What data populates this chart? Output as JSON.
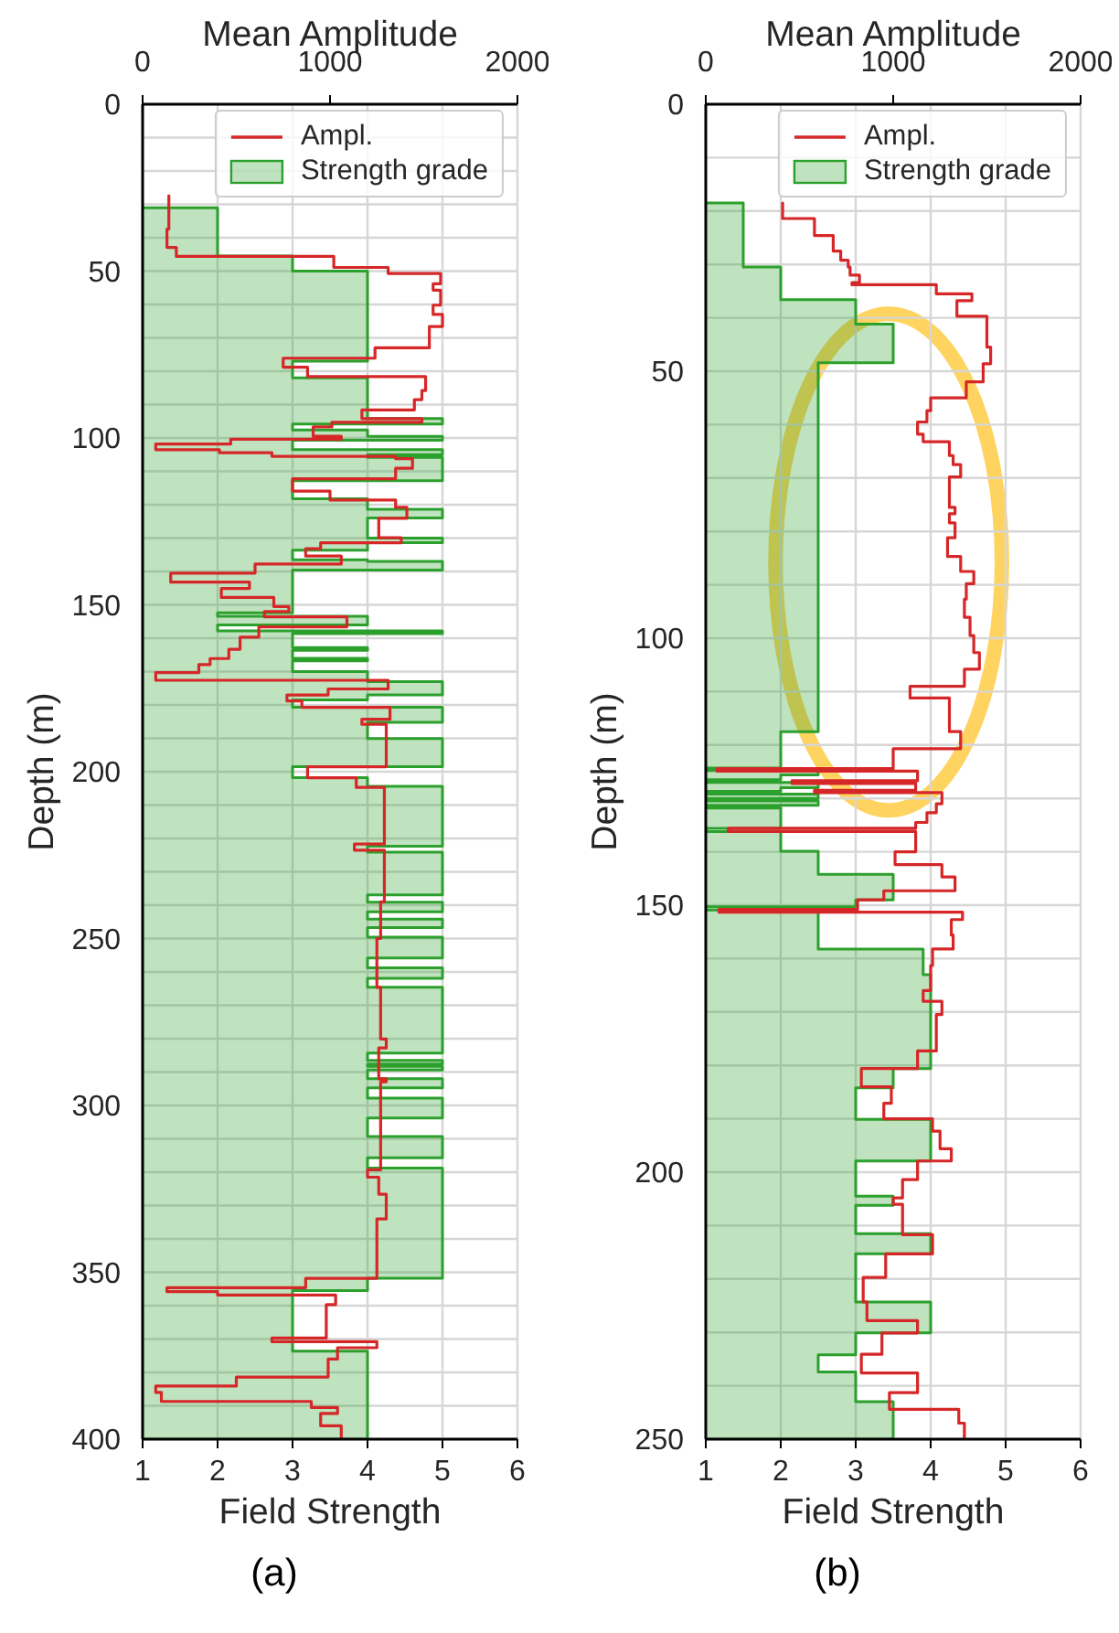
{
  "chart_data": [
    {
      "type": "step",
      "orientation": "horizontal",
      "x2label": "Mean Amplitude",
      "xlabel": "Field Strength",
      "ylabel": "Depth (m)",
      "annotations": [
        "(a)"
      ],
      "xlim": [
        1,
        6
      ],
      "xticks": [
        1,
        2,
        3,
        4,
        5,
        6
      ],
      "x2lim": [
        0,
        2000
      ],
      "x2ticks": [
        0,
        1000,
        2000
      ],
      "ylim": [
        400,
        0
      ],
      "yticks": [
        0,
        {
          "value": 10,
          "label": null
        },
        {
          "value": 20,
          "label": null
        },
        {
          "value": 30,
          "label": null
        },
        {
          "value": 40,
          "label": null
        },
        50,
        {
          "value": 60,
          "label": null
        },
        {
          "value": 70,
          "label": null
        },
        {
          "value": 80,
          "label": null
        },
        {
          "value": 90,
          "label": null
        },
        100,
        {
          "value": 110,
          "label": null
        },
        {
          "value": 120,
          "label": null
        },
        {
          "value": 130,
          "label": null
        },
        {
          "value": 140,
          "label": null
        },
        150,
        {
          "value": 160,
          "label": null
        },
        {
          "value": 170,
          "label": null
        },
        {
          "value": 180,
          "label": null
        },
        {
          "value": 190,
          "label": null
        },
        200,
        {
          "value": 210,
          "label": null
        },
        {
          "value": 220,
          "label": null
        },
        {
          "value": 230,
          "label": null
        },
        {
          "value": 240,
          "label": null
        },
        250,
        {
          "value": 260,
          "label": null
        },
        {
          "value": 270,
          "label": null
        },
        {
          "value": 280,
          "label": null
        },
        {
          "value": 290,
          "label": null
        },
        300,
        {
          "value": 310,
          "label": null
        },
        {
          "value": 320,
          "label": null
        },
        {
          "value": 330,
          "label": null
        },
        {
          "value": 340,
          "label": null
        },
        350,
        {
          "value": 360,
          "label": null
        },
        {
          "value": 370,
          "label": null
        },
        {
          "value": 380,
          "label": null
        },
        {
          "value": 390,
          "label": null
        },
        400
      ],
      "grid": true,
      "legend": "top right",
      "series": [
        {
          "name": "Ampl.",
          "type": "step",
          "axis": "x2",
          "color": "#d62728",
          "x": [
            27.4,
            37.4,
            42.9,
            45.6,
            48.9,
            50.7,
            53.8,
            55.7,
            60.2,
            63,
            66.6,
            73,
            76.1,
            78.8,
            81.6,
            85.8,
            88.5,
            91.6,
            94.2,
            95.3,
            96.7,
            99.5,
            100.4,
            101.8,
            103.5,
            104.4,
            105.5,
            106.2,
            109.1,
            112.2,
            115.9,
            118.6,
            120.8,
            124.1,
            129.9,
            131.4,
            133.2,
            135.4,
            137.8,
            140.5,
            143.2,
            145.1,
            147.8,
            150.5,
            152,
            153.6,
            156.6,
            159.7,
            163.3,
            166.1,
            167.9,
            170.3,
            172.6,
            175.2,
            177,
            178.8,
            180.7,
            184.3,
            185.8,
            198.5,
            201.8,
            204.7,
            221.7,
            223.5,
            239,
            250,
            264.6,
            280.1,
            282.8,
            292,
            292.9,
            319.3,
            321.5,
            326.6,
            334,
            351.8,
            354.6,
            355.8,
            356.8,
            359.7,
            369.7,
            370.8,
            372.6,
            376,
            381.4,
            384.1,
            386,
            388.7,
            390.5,
            392.3,
            396,
            400
          ],
          "values": [
            140,
            130,
            180,
            1020,
            1310,
            1590,
            1550,
            1590,
            1550,
            1600,
            1530,
            1240,
            750,
            880,
            1510,
            1490,
            1450,
            1170,
            1490,
            1010,
            910,
            1060,
            470,
            70,
            410,
            690,
            1350,
            1440,
            1350,
            800,
            1000,
            1350,
            1410,
            1260,
            1380,
            950,
            870,
            1060,
            600,
            150,
            570,
            420,
            700,
            780,
            650,
            1090,
            620,
            520,
            460,
            360,
            300,
            70,
            1310,
            990,
            770,
            850,
            1320,
            1170,
            1300,
            880,
            1140,
            1290,
            1130,
            1290,
            1270,
            1250,
            1270,
            1300,
            1260,
            1300,
            1270,
            1200,
            1260,
            1300,
            1250,
            870,
            130,
            400,
            1030,
            980,
            690,
            1250,
            1040,
            990,
            500,
            70,
            100,
            900,
            1040,
            950,
            1060,
            1060
          ]
        },
        {
          "name": "Strength grade",
          "type": "area",
          "color": "#2ca02c",
          "x": [
            31,
            45.5,
            50,
            77,
            82,
            94.2,
            95.8,
            97.6,
            99.5,
            100.7,
            103.5,
            105,
            105.8,
            112.8,
            118.2,
            121.4,
            124,
            130,
            131.4,
            133.6,
            136.5,
            137,
            139.6,
            152.4,
            153.4,
            156,
            157.8,
            158.6,
            162.8,
            163.6,
            166,
            166.8,
            170,
            173,
            177,
            178.5,
            180.7,
            185.2,
            190.1,
            198.5,
            201.8,
            204.4,
            222.3,
            224.1,
            236.9,
            239.1,
            242,
            244.2,
            246.7,
            249.6,
            255.8,
            258.8,
            261.9,
            264.6,
            284.3,
            286.5,
            287.6,
            288.3,
            289.4,
            292,
            294.7,
            297.8,
            303.8,
            309.3,
            315.7,
            318.8,
            351.8,
            355.5,
            373.6,
            400
          ],
          "values": [
            2,
            3,
            4,
            3,
            4,
            5,
            3,
            4,
            5,
            3,
            5,
            4,
            5,
            3,
            4,
            5,
            4,
            5,
            4,
            3,
            4,
            5,
            3,
            2,
            4,
            2,
            5,
            3,
            4,
            3,
            4,
            3,
            4,
            5,
            4,
            3,
            5,
            4,
            5,
            3,
            4,
            5,
            4,
            5,
            4,
            5,
            4,
            5,
            4,
            5,
            4,
            5,
            4,
            5,
            4,
            5,
            4,
            5,
            4,
            5,
            4,
            5,
            4,
            5,
            4,
            5,
            4,
            3,
            4,
            4
          ]
        }
      ]
    },
    {
      "type": "step",
      "orientation": "horizontal",
      "x2label": "Mean Amplitude",
      "xlabel": "Field Strength",
      "ylabel": "Depth (m)",
      "annotations": [
        "(b)"
      ],
      "xlim": [
        1,
        6
      ],
      "xticks": [
        1,
        2,
        3,
        4,
        5,
        6
      ],
      "x2lim": [
        0,
        2000
      ],
      "x2ticks": [
        0,
        1000,
        2000
      ],
      "ylim": [
        250,
        0
      ],
      "yticks": [
        0,
        {
          "value": 10,
          "label": null
        },
        {
          "value": 20,
          "label": null
        },
        {
          "value": 30,
          "label": null
        },
        {
          "value": 40,
          "label": null
        },
        50,
        {
          "value": 60,
          "label": null
        },
        {
          "value": 70,
          "label": null
        },
        {
          "value": 80,
          "label": null
        },
        {
          "value": 90,
          "label": null
        },
        100,
        {
          "value": 110,
          "label": null
        },
        {
          "value": 120,
          "label": null
        },
        {
          "value": 130,
          "label": null
        },
        {
          "value": 140,
          "label": null
        },
        150,
        {
          "value": 160,
          "label": null
        },
        {
          "value": 170,
          "label": null
        },
        {
          "value": 180,
          "label": null
        },
        {
          "value": 190,
          "label": null
        },
        200,
        {
          "value": 210,
          "label": null
        },
        {
          "value": 220,
          "label": null
        },
        {
          "value": 230,
          "label": null
        },
        {
          "value": 240,
          "label": null
        },
        250
      ],
      "grid": true,
      "legend": "top right",
      "series": [
        {
          "name": "Ampl.",
          "type": "step",
          "axis": "x2",
          "color": "#d62728",
          "x": [
            18.5,
            21.4,
            24.6,
            27.5,
            29.2,
            30.5,
            32,
            33.4,
            33.8,
            35.5,
            36.8,
            39.7,
            45.5,
            48.6,
            52,
            55,
            57.4,
            59.5,
            61.8,
            63.2,
            65.8,
            67.5,
            69.8,
            75.5,
            76.7,
            78.4,
            81.2,
            84.7,
            87.5,
            89.8,
            92.7,
            96.1,
            99.5,
            102.7,
            105.8,
            109,
            111.2,
            117.5,
            120.7,
            124.4,
            124.9,
            126.7,
            127.2,
            128.5,
            128.9,
            131,
            132.7,
            134.5,
            135.6,
            136.2,
            140,
            142.4,
            144.7,
            147.3,
            149,
            150.8,
            151.3,
            152.7,
            155.6,
            158.2,
            161.3,
            166,
            168,
            170.5,
            177.3,
            180.6,
            184,
            187.1,
            190,
            192.3,
            195.6,
            197.9,
            201.4,
            204.8,
            206,
            211.7,
            215.3,
            219.7,
            224.3,
            227.8,
            230.1,
            234.1,
            237.6,
            241.3,
            244.4,
            247,
            250
          ],
          "values": [
            410,
            580,
            680,
            720,
            760,
            770,
            820,
            780,
            1230,
            1420,
            1340,
            1500,
            1520,
            1480,
            1390,
            1200,
            1180,
            1130,
            1160,
            1300,
            1320,
            1360,
            1300,
            1330,
            1300,
            1330,
            1290,
            1360,
            1430,
            1390,
            1380,
            1410,
            1430,
            1460,
            1380,
            1090,
            1300,
            1360,
            1000,
            60,
            1130,
            460,
            1120,
            580,
            1260,
            1230,
            1180,
            1120,
            120,
            1120,
            1010,
            1260,
            1330,
            950,
            810,
            70,
            1370,
            1310,
            1320,
            1210,
            1200,
            1160,
            1260,
            1230,
            1130,
            830,
            990,
            950,
            1210,
            1250,
            1310,
            1130,
            1050,
            1000,
            1050,
            1210,
            960,
            840,
            860,
            1130,
            940,
            830,
            1130,
            980,
            1350,
            1380,
            1380
          ]
        },
        {
          "name": "Strength grade",
          "type": "area",
          "color": "#2ca02c",
          "x": [
            18.5,
            30.5,
            36.6,
            41.2,
            48.4,
            117.5,
            124.3,
            124.8,
            125.6,
            126.5,
            127,
            128,
            128.7,
            129.2,
            130,
            130.5,
            131.3,
            131.8,
            135.6,
            136.2,
            139.9,
            144.2,
            149,
            150.3,
            150.9,
            158.2,
            163,
            180.6,
            184.2,
            190.1,
            197.9,
            204.5,
            206.2,
            211.5,
            215.3,
            224.3,
            230.1,
            234.2,
            237.4,
            243,
            250
          ],
          "values": [
            1.5,
            2,
            3,
            3.5,
            2.5,
            2,
            1,
            2.5,
            2,
            1,
            2.5,
            2,
            1,
            2.5,
            1,
            2.5,
            1,
            2,
            1,
            2,
            2.5,
            3.5,
            3,
            1,
            2.5,
            3.9,
            4,
            3.5,
            3,
            4,
            3,
            3.5,
            3,
            4,
            3,
            4,
            3,
            2.5,
            3,
            3.5,
            3.5
          ]
        }
      ]
    }
  ]
}
